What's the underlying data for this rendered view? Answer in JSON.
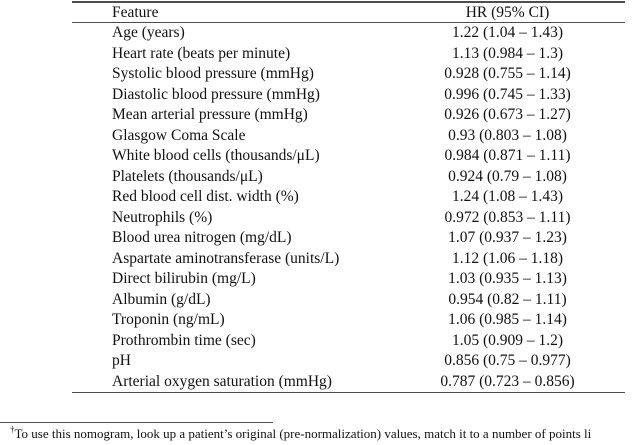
{
  "table": {
    "header": {
      "feature": "Feature",
      "hr": "HR (95% CI)"
    },
    "rows": [
      {
        "feature": "Age (years)",
        "hr": "1.22 (1.04 – 1.43)"
      },
      {
        "feature": "Heart rate (beats per minute)",
        "hr": "1.13 (0.984 – 1.3)"
      },
      {
        "feature": "Systolic blood pressure (mmHg)",
        "hr": "0.928 (0.755 – 1.14)"
      },
      {
        "feature": "Diastolic blood pressure (mmHg)",
        "hr": "0.996 (0.745 – 1.33)"
      },
      {
        "feature": "Mean arterial pressure (mmHg)",
        "hr": "0.926 (0.673 – 1.27)"
      },
      {
        "feature": "Glasgow Coma Scale",
        "hr": "0.93 (0.803 – 1.08)"
      },
      {
        "feature": "White blood cells (thousands/μL)",
        "hr": "0.984 (0.871 – 1.11)"
      },
      {
        "feature": "Platelets (thousands/μL)",
        "hr": "0.924 (0.79 – 1.08)"
      },
      {
        "feature": "Red blood cell dist. width (%)",
        "hr": "1.24 (1.08 – 1.43)"
      },
      {
        "feature": "Neutrophils (%)",
        "hr": "0.972 (0.853 – 1.11)"
      },
      {
        "feature": "Blood urea nitrogen (mg/dL)",
        "hr": "1.07 (0.937 – 1.23)"
      },
      {
        "feature": "Aspartate aminotransferase (units/L)",
        "hr": "1.12 (1.06 – 1.18)"
      },
      {
        "feature": "Direct bilirubin (mg/L)",
        "hr": "1.03 (0.935 – 1.13)"
      },
      {
        "feature": "Albumin (g/dL)",
        "hr": "0.954 (0.82 – 1.11)"
      },
      {
        "feature": "Troponin (ng/mL)",
        "hr": "1.06 (0.985 – 1.14)"
      },
      {
        "feature": "Prothrombin time (sec)",
        "hr": "1.05 (0.909 – 1.2)"
      },
      {
        "feature": "pH",
        "hr": "0.856 (0.75 – 0.977)"
      },
      {
        "feature": "Arterial oxygen saturation (mmHg)",
        "hr": "0.787 (0.723 – 0.856)"
      }
    ]
  },
  "footnote": {
    "marker": "†",
    "text": "To use this nomogram, look up a patient’s original (pre-normalization) values, match it to a number of points li"
  },
  "chart_data": {
    "type": "table",
    "title": "",
    "columns": [
      "Feature",
      "HR (95% CI)"
    ],
    "rows": [
      [
        "Age (years)",
        "1.22 (1.04 – 1.43)"
      ],
      [
        "Heart rate (beats per minute)",
        "1.13 (0.984 – 1.3)"
      ],
      [
        "Systolic blood pressure (mmHg)",
        "0.928 (0.755 – 1.14)"
      ],
      [
        "Diastolic blood pressure (mmHg)",
        "0.996 (0.745 – 1.33)"
      ],
      [
        "Mean arterial pressure (mmHg)",
        "0.926 (0.673 – 1.27)"
      ],
      [
        "Glasgow Coma Scale",
        "0.93 (0.803 – 1.08)"
      ],
      [
        "White blood cells (thousands/μL)",
        "0.984 (0.871 – 1.11)"
      ],
      [
        "Platelets (thousands/μL)",
        "0.924 (0.79 – 1.08)"
      ],
      [
        "Red blood cell dist. width (%)",
        "1.24 (1.08 – 1.43)"
      ],
      [
        "Neutrophils (%)",
        "0.972 (0.853 – 1.11)"
      ],
      [
        "Blood urea nitrogen (mg/dL)",
        "1.07 (0.937 – 1.23)"
      ],
      [
        "Aspartate aminotransferase (units/L)",
        "1.12 (1.06 – 1.18)"
      ],
      [
        "Direct bilirubin (mg/L)",
        "1.03 (0.935 – 1.13)"
      ],
      [
        "Albumin (g/dL)",
        "0.954 (0.82 – 1.11)"
      ],
      [
        "Troponin (ng/mL)",
        "1.06 (0.985 – 1.14)"
      ],
      [
        "Prothrombin time (sec)",
        "1.05 (0.909 – 1.2)"
      ],
      [
        "pH",
        "0.856 (0.75 – 0.977)"
      ],
      [
        "Arterial oxygen saturation (mmHg)",
        "0.787 (0.723 – 0.856)"
      ]
    ]
  }
}
